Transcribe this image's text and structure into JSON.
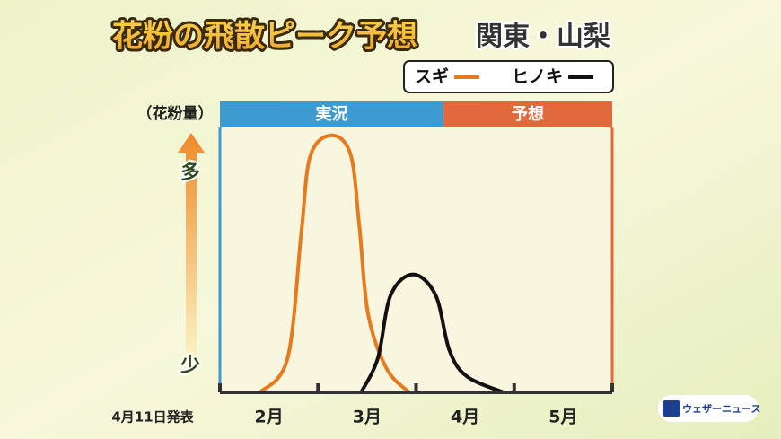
{
  "chart_data": {
    "type": "line",
    "title": "花粉の飛散ピーク予想",
    "subtitle": "関東・山梨",
    "y_label": "（花粉量）",
    "y_high": "多",
    "y_low": "少",
    "note": "4月11日発表",
    "source": "ウェザーニュース",
    "periods": [
      {
        "label": "実況",
        "color": "#3d9bd1",
        "start": 2,
        "end": 4.28
      },
      {
        "label": "予想",
        "color": "#e2693b",
        "start": 4.28,
        "end": 6
      }
    ],
    "categories": [
      "2月",
      "3月",
      "4月",
      "5月"
    ],
    "xlim": [
      2,
      6
    ],
    "xticks": [
      2,
      3,
      4,
      5,
      6
    ],
    "ylim": [
      0,
      100
    ],
    "series": [
      {
        "name": "スギ",
        "color": "#e87a1e",
        "x": [
          2.41,
          2.69,
          2.83,
          2.92,
          3.13,
          3.33,
          3.42,
          3.51,
          3.7,
          3.93
        ],
        "values": [
          0,
          13,
          61,
          90,
          98,
          91,
          64,
          30,
          9,
          0
        ]
      },
      {
        "name": "ヒノキ",
        "color": "#111111",
        "x": [
          3.44,
          3.61,
          3.74,
          3.97,
          4.2,
          4.34,
          4.52,
          4.89
        ],
        "values": [
          0,
          13,
          37,
          45,
          37,
          16,
          6,
          0
        ]
      }
    ]
  }
}
